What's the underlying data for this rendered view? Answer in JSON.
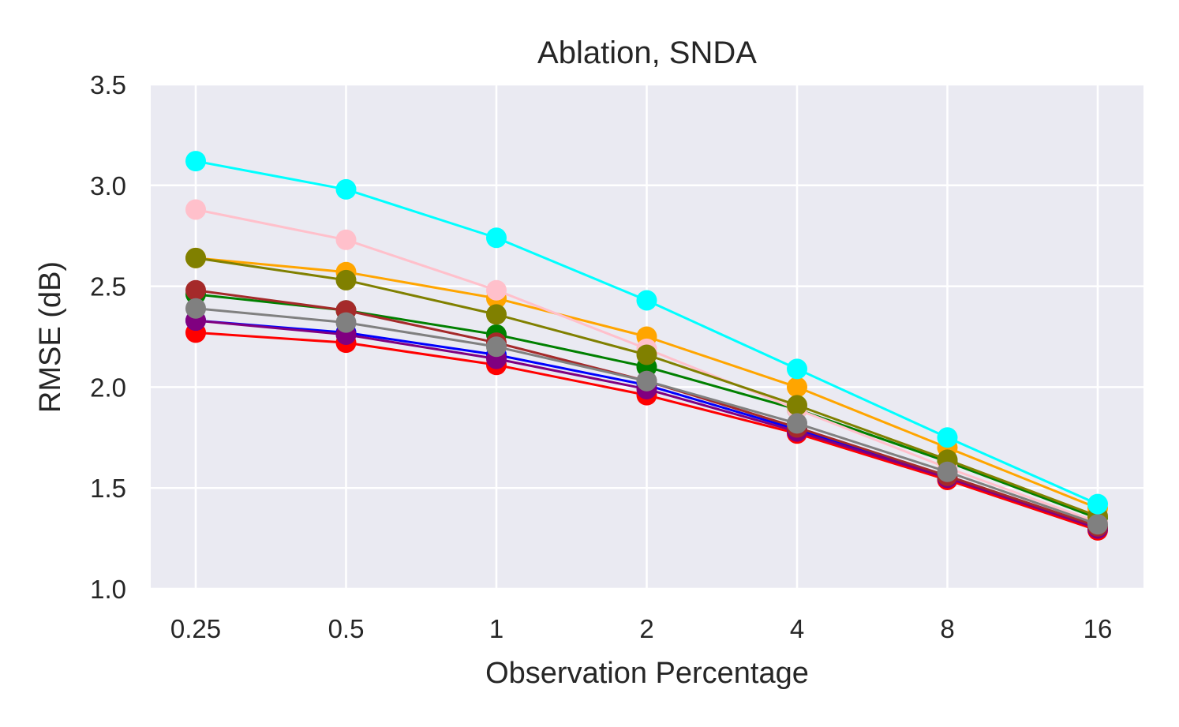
{
  "chart_data": {
    "type": "line",
    "title": "Ablation, SNDA",
    "xlabel": "Observation Percentage",
    "ylabel": "RMSE (dB)",
    "x": [
      "0.25",
      "0.5",
      "1",
      "2",
      "4",
      "8",
      "16"
    ],
    "ylim": [
      1.0,
      3.5
    ],
    "yticks": [
      "1.0",
      "1.5",
      "2.0",
      "2.5",
      "3.0",
      "3.5"
    ],
    "grid": true,
    "legend": "none",
    "series": [
      {
        "name": "red",
        "color": "#ff0000",
        "values": [
          2.27,
          2.22,
          2.11,
          1.96,
          1.77,
          1.54,
          1.29
        ]
      },
      {
        "name": "blue",
        "color": "#0000ff",
        "values": [
          2.33,
          2.27,
          2.16,
          2.01,
          1.79,
          1.56,
          1.3
        ]
      },
      {
        "name": "purple",
        "color": "#800080",
        "values": [
          2.33,
          2.26,
          2.14,
          1.99,
          1.78,
          1.55,
          1.3
        ]
      },
      {
        "name": "green",
        "color": "#008000",
        "values": [
          2.46,
          2.38,
          2.26,
          2.1,
          1.89,
          1.63,
          1.35
        ]
      },
      {
        "name": "brown",
        "color": "#a52a2a",
        "values": [
          2.48,
          2.38,
          2.22,
          2.03,
          1.8,
          1.56,
          1.31
        ]
      },
      {
        "name": "orange",
        "color": "#ffa500",
        "values": [
          2.64,
          2.57,
          2.44,
          2.25,
          2.0,
          1.7,
          1.4
        ]
      },
      {
        "name": "pink",
        "color": "#ffc0cb",
        "values": [
          2.88,
          2.73,
          2.48,
          2.19,
          1.89,
          1.6,
          1.33
        ]
      },
      {
        "name": "olive",
        "color": "#808000",
        "values": [
          2.64,
          2.53,
          2.36,
          2.16,
          1.91,
          1.64,
          1.36
        ]
      },
      {
        "name": "gray",
        "color": "#808080",
        "values": [
          2.39,
          2.32,
          2.2,
          2.03,
          1.82,
          1.58,
          1.32
        ]
      },
      {
        "name": "cyan",
        "color": "#00ffff",
        "values": [
          3.12,
          2.98,
          2.74,
          2.43,
          2.09,
          1.75,
          1.42
        ]
      }
    ]
  }
}
